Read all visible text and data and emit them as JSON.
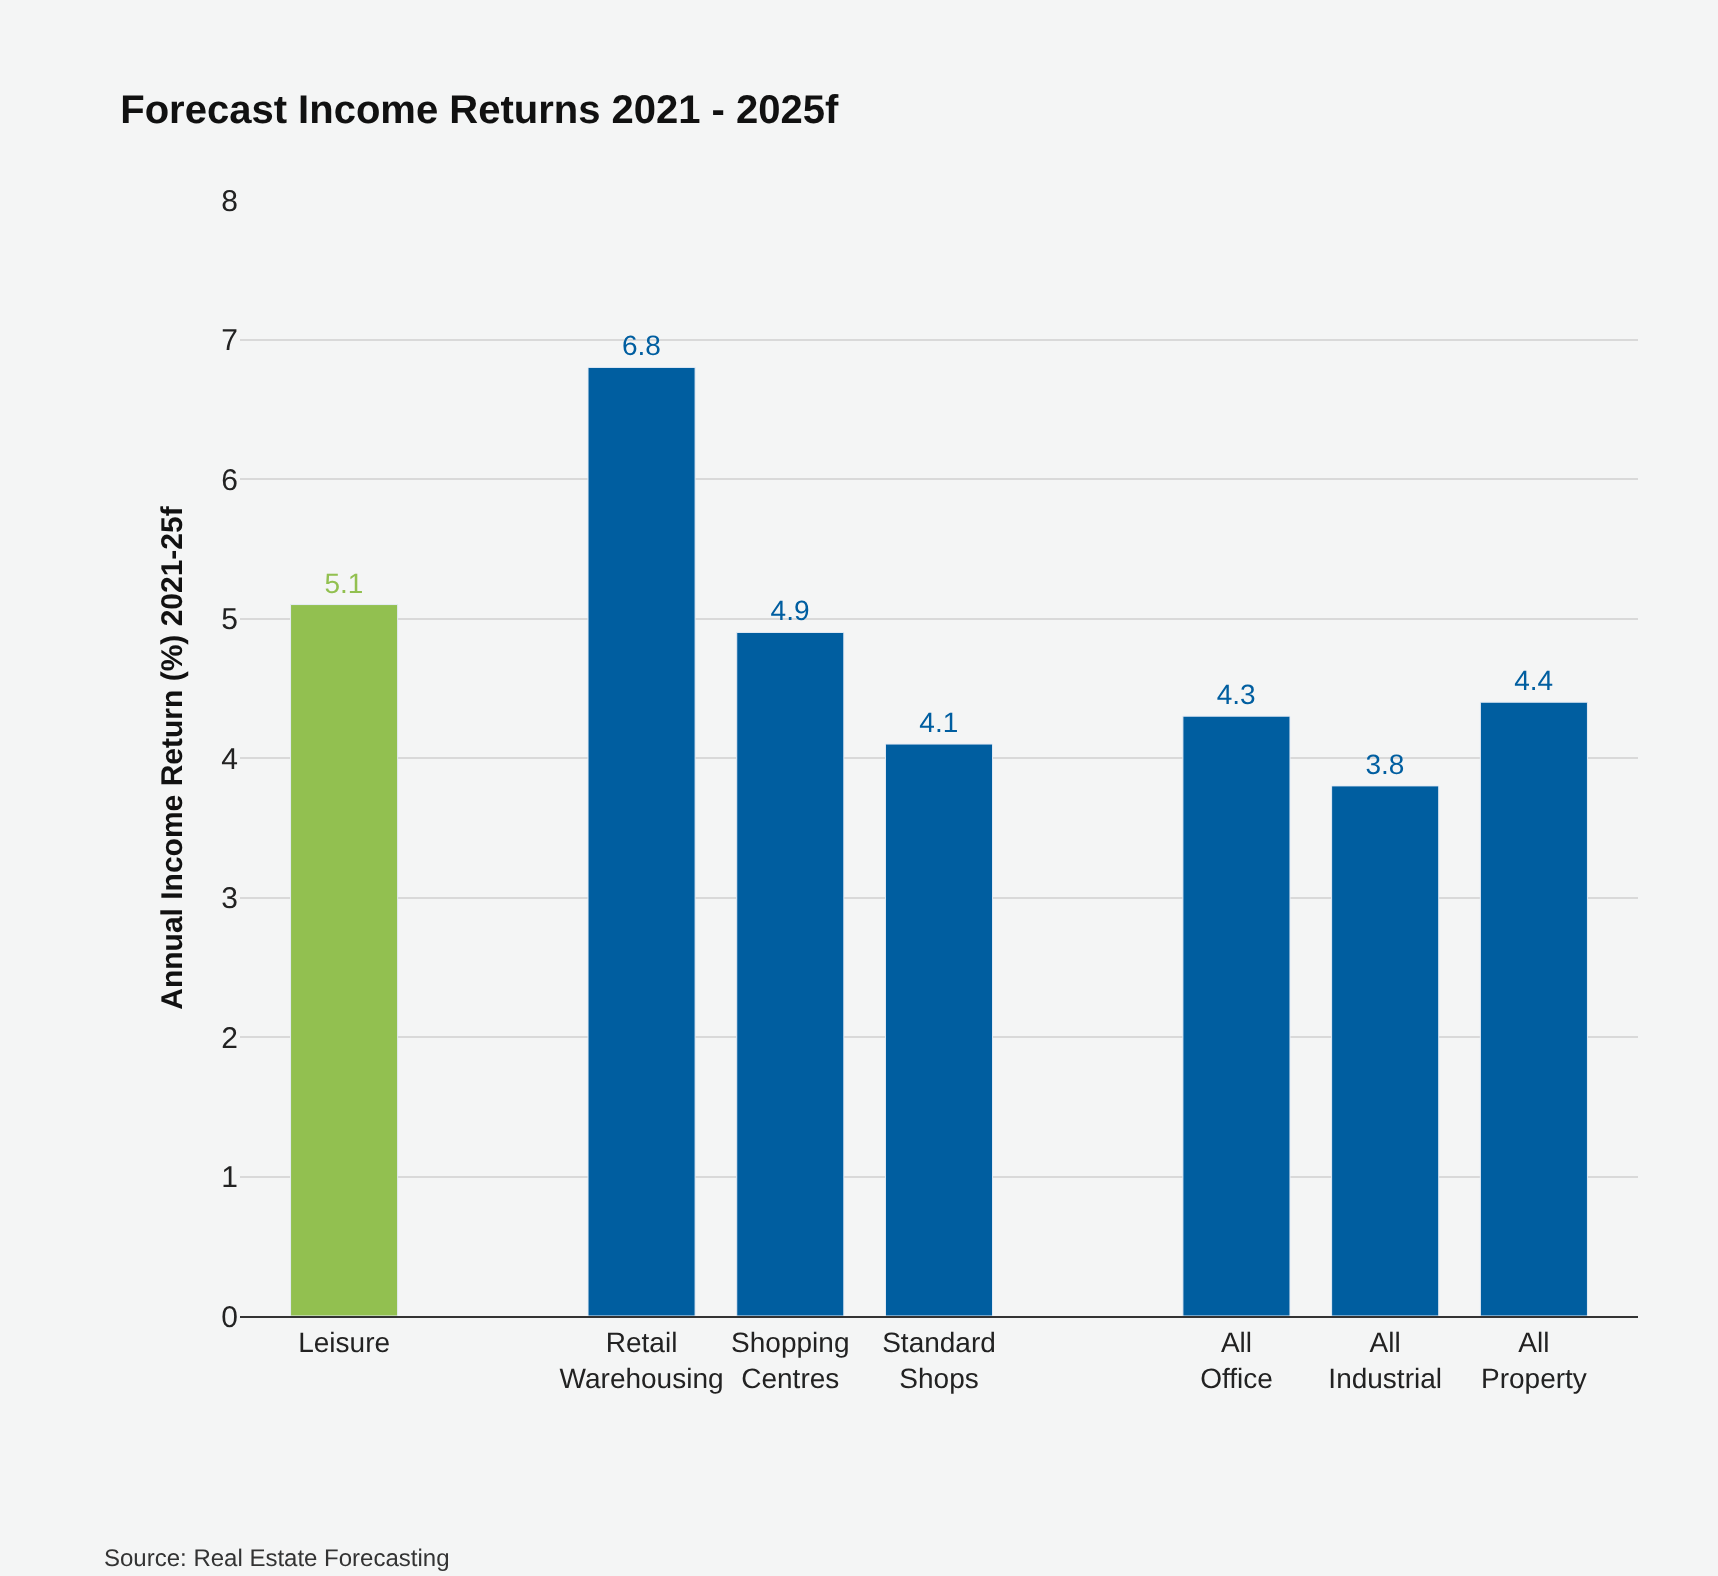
{
  "chart_data": {
    "type": "bar",
    "title": "Forecast Income Returns 2021 - 2025f",
    "ylabel": "Annual Income Return (%) 2021-25f",
    "categories": [
      "Leisure",
      null,
      "Retail Warehousing",
      "Shopping Centres",
      "Standard Shops",
      null,
      "All Office",
      "All Industrial",
      "All Property"
    ],
    "values": [
      5.1,
      null,
      6.8,
      4.9,
      4.1,
      null,
      4.3,
      3.8,
      4.4
    ],
    "colors": [
      "#92c050",
      null,
      "#005ea0",
      "#005ea0",
      "#005ea0",
      null,
      "#005ea0",
      "#005ea0",
      "#005ea0"
    ],
    "data_labels": true,
    "ylim": [
      0,
      8
    ],
    "yticks": [
      0,
      1,
      2,
      3,
      4,
      5,
      6,
      7,
      8
    ],
    "grid": "y",
    "annotations": [
      "Source: Real Estate Forecasting"
    ]
  }
}
